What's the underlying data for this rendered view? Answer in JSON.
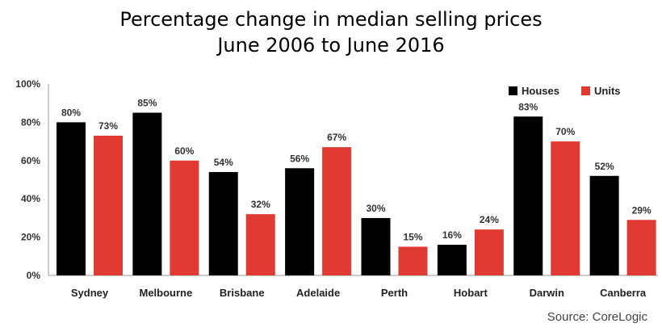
{
  "chart_data": {
    "type": "bar",
    "title_line1": "Percentage change in median selling prices",
    "title_line2": "June 2006  to June 2016",
    "categories": [
      "Sydney",
      "Melbourne",
      "Brisbane",
      "Adelaide",
      "Perth",
      "Hobart",
      "Darwin",
      "Canberra"
    ],
    "series": [
      {
        "name": "Houses",
        "color": "#000000",
        "values": [
          80,
          85,
          54,
          56,
          30,
          16,
          83,
          52
        ]
      },
      {
        "name": "Units",
        "color": "#e03a33",
        "values": [
          73,
          60,
          32,
          67,
          15,
          24,
          70,
          29
        ]
      }
    ],
    "value_suffix": "%",
    "yticks": [
      "0%",
      "20%",
      "40%",
      "60%",
      "80%",
      "100%"
    ],
    "ylim": [
      0,
      100
    ],
    "legend_position": "top-right",
    "grid": false,
    "source": "Source: CoreLogic"
  }
}
